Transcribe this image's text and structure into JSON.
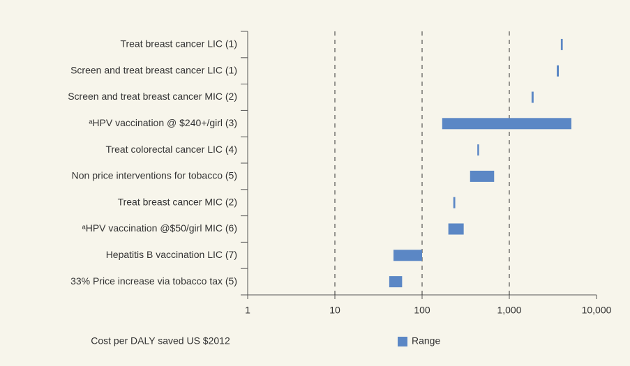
{
  "chart_data": {
    "type": "range_bar",
    "orientation": "horizontal",
    "x_label": "Cost per DALY saved US $2012",
    "legend": "Range",
    "color": "#5b87c5",
    "categories": [
      "Treat breast cancer LIC (1)",
      "Screen and treat breast cancer LIC (1)",
      "Screen and treat breast cancer MIC (2)",
      "ᵃHPV vaccination @ $240+/girl (3)",
      "Treat colorectal cancer LIC (4)",
      "Non price interventions for tobacco (5)",
      "Treat breast cancer MIC (2)",
      "ᵃHPV vaccination @$50/girl MIC (6)",
      "Hepatitis B vaccination LIC (7)",
      "33% Price increase via tobacco tax (5)"
    ],
    "values": [
      [
        3900,
        4100
      ],
      [
        3500,
        3700
      ],
      [
        1800,
        1900
      ],
      [
        170,
        5150
      ],
      [
        430,
        450
      ],
      [
        355,
        670
      ],
      [
        228,
        240
      ],
      [
        200,
        300
      ],
      [
        47,
        100
      ],
      [
        42,
        59
      ]
    ],
    "x_scale": "log",
    "xlim": [
      1,
      10000
    ],
    "xticks": [
      1,
      10,
      100,
      {
        "value": 1000,
        "label": "1,000"
      },
      {
        "value": 10000,
        "label": "10,000"
      }
    ],
    "grid": true
  }
}
